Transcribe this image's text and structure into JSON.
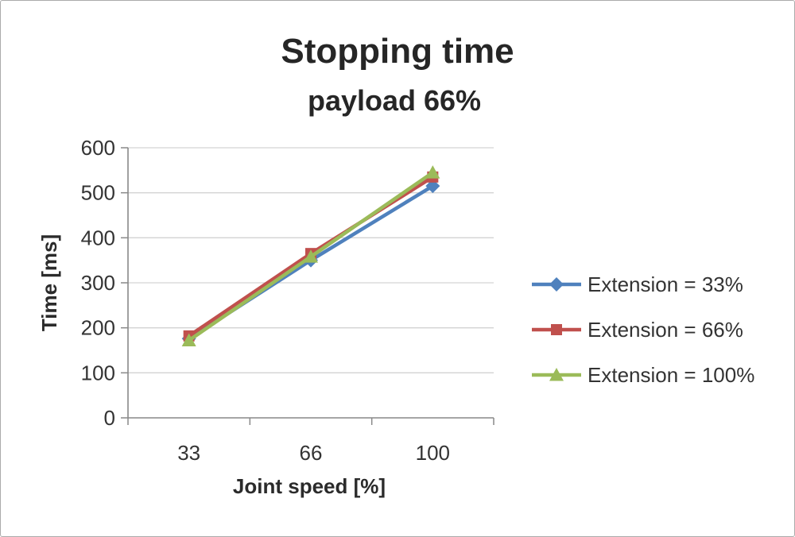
{
  "chart": {
    "title": "Stopping time",
    "subtitle": "payload 66%",
    "xlabel": "Joint speed [%]",
    "ylabel": "Time [ms]"
  },
  "chart_data": {
    "type": "line",
    "title": "Stopping time",
    "subtitle": "payload 66%",
    "xlabel": "Joint speed [%]",
    "ylabel": "Time [ms]",
    "categories": [
      "33",
      "66",
      "100"
    ],
    "series": [
      {
        "name": "Extension = 33%",
        "values": [
          176,
          350,
          515
        ],
        "color": "#4F81BD",
        "marker": "diamond"
      },
      {
        "name": "Extension = 66%",
        "values": [
          182,
          365,
          535
        ],
        "color": "#C0504D",
        "marker": "square"
      },
      {
        "name": "Extension = 100%",
        "values": [
          172,
          358,
          545
        ],
        "color": "#9BBB59",
        "marker": "triangle"
      }
    ],
    "ylim": [
      0,
      600
    ],
    "ytick_step": 100,
    "grid": true,
    "legend_position": "right",
    "colors": {
      "gridline": "#d3d3d3",
      "axis": "#898989",
      "text": "#333333"
    }
  }
}
